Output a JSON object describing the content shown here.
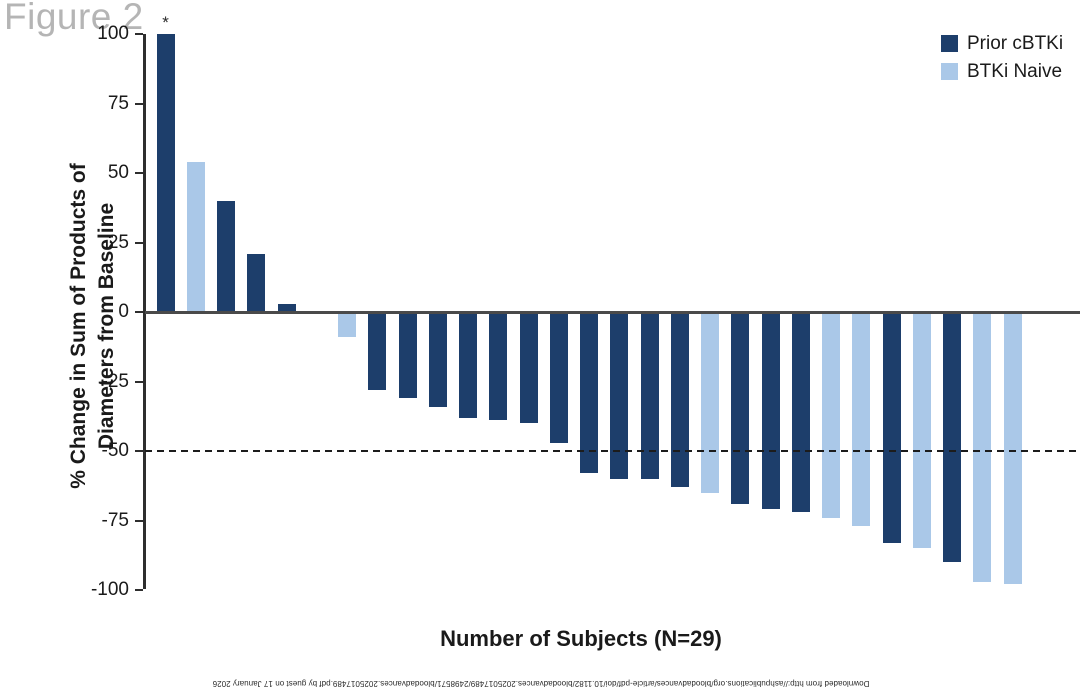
{
  "figure": {
    "label": "Figure 2"
  },
  "legend": {
    "items": [
      {
        "id": "prior",
        "label": "Prior cBTKi",
        "color": "#1d3e6b"
      },
      {
        "id": "naive",
        "label": "BTKi Naive",
        "color": "#aac8e8"
      }
    ]
  },
  "axes": {
    "y_title_line1": "% Change in Sum of Products of",
    "y_title_line2": "Diameters from Baseline",
    "x_title": "Number of Subjects (N=29)",
    "y_ticks": [
      100,
      75,
      50,
      25,
      0,
      -25,
      -50,
      -75,
      -100
    ]
  },
  "chart_data": {
    "type": "bar",
    "title": "Figure 2",
    "xlabel": "Number of Subjects (N=29)",
    "ylabel": "% Change in Sum of Products of Diameters from Baseline",
    "ylim": [
      -100,
      100
    ],
    "yticks": [
      100,
      75,
      50,
      25,
      0,
      -25,
      -50,
      -75,
      -100
    ],
    "reference_line_y": -50,
    "grid": false,
    "legend_position": "top-right",
    "groups": {
      "prior": {
        "label": "Prior cBTKi",
        "color": "#1d3e6b"
      },
      "naive": {
        "label": "BTKi Naive",
        "color": "#aac8e8"
      }
    },
    "bars": [
      {
        "subject": 1,
        "value": 100,
        "group": "prior",
        "annotation": "*"
      },
      {
        "subject": 2,
        "value": 54,
        "group": "naive"
      },
      {
        "subject": 3,
        "value": 40,
        "group": "prior"
      },
      {
        "subject": 4,
        "value": 21,
        "group": "prior"
      },
      {
        "subject": 5,
        "value": 3,
        "group": "prior"
      },
      {
        "subject": 6,
        "value": 0.5,
        "group": "naive"
      },
      {
        "subject": 7,
        "value": -9,
        "group": "naive"
      },
      {
        "subject": 8,
        "value": -28,
        "group": "prior"
      },
      {
        "subject": 9,
        "value": -31,
        "group": "prior"
      },
      {
        "subject": 10,
        "value": -34,
        "group": "prior"
      },
      {
        "subject": 11,
        "value": -38,
        "group": "prior"
      },
      {
        "subject": 12,
        "value": -39,
        "group": "prior"
      },
      {
        "subject": 13,
        "value": -40,
        "group": "prior"
      },
      {
        "subject": 14,
        "value": -47,
        "group": "prior"
      },
      {
        "subject": 15,
        "value": -58,
        "group": "prior"
      },
      {
        "subject": 16,
        "value": -60,
        "group": "prior"
      },
      {
        "subject": 17,
        "value": -60,
        "group": "prior"
      },
      {
        "subject": 18,
        "value": -63,
        "group": "prior"
      },
      {
        "subject": 19,
        "value": -65,
        "group": "naive"
      },
      {
        "subject": 20,
        "value": -69,
        "group": "prior"
      },
      {
        "subject": 21,
        "value": -71,
        "group": "prior"
      },
      {
        "subject": 22,
        "value": -72,
        "group": "prior"
      },
      {
        "subject": 23,
        "value": -74,
        "group": "naive"
      },
      {
        "subject": 24,
        "value": -77,
        "group": "naive"
      },
      {
        "subject": 25,
        "value": -83,
        "group": "prior"
      },
      {
        "subject": 26,
        "value": -85,
        "group": "naive"
      },
      {
        "subject": 27,
        "value": -90,
        "group": "prior"
      },
      {
        "subject": 28,
        "value": -97,
        "group": "naive"
      },
      {
        "subject": 29,
        "value": -98,
        "group": "naive"
      }
    ]
  },
  "watermark": {
    "text": "Downloaded from http://ashpublications.org/bloodadvances/article-pdf/doi/10.1182/bloodadvances.2025017489/2498571/bloodadvances.2025017489.pdf by guest on 17 January 2026"
  }
}
